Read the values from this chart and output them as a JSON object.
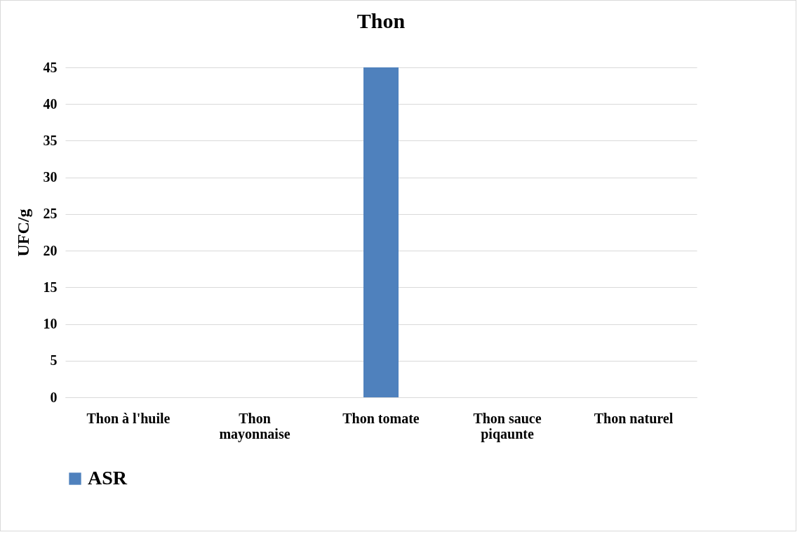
{
  "chart_data": {
    "type": "bar",
    "title": "Thon",
    "ylabel": "UFC/g",
    "categories": [
      "Thon à l'huile",
      "Thon mayonnaise",
      "Thon tomate",
      "Thon sauce piqaunte",
      "Thon naturel"
    ],
    "series": [
      {
        "name": "ASR",
        "color": "#4f81bd",
        "values": [
          0,
          0,
          45,
          0,
          0
        ]
      }
    ],
    "ylim": [
      0,
      45
    ],
    "yticks": [
      0,
      5,
      10,
      15,
      20,
      25,
      30,
      35,
      40,
      45
    ],
    "grid": "y",
    "legend": "bottom"
  }
}
